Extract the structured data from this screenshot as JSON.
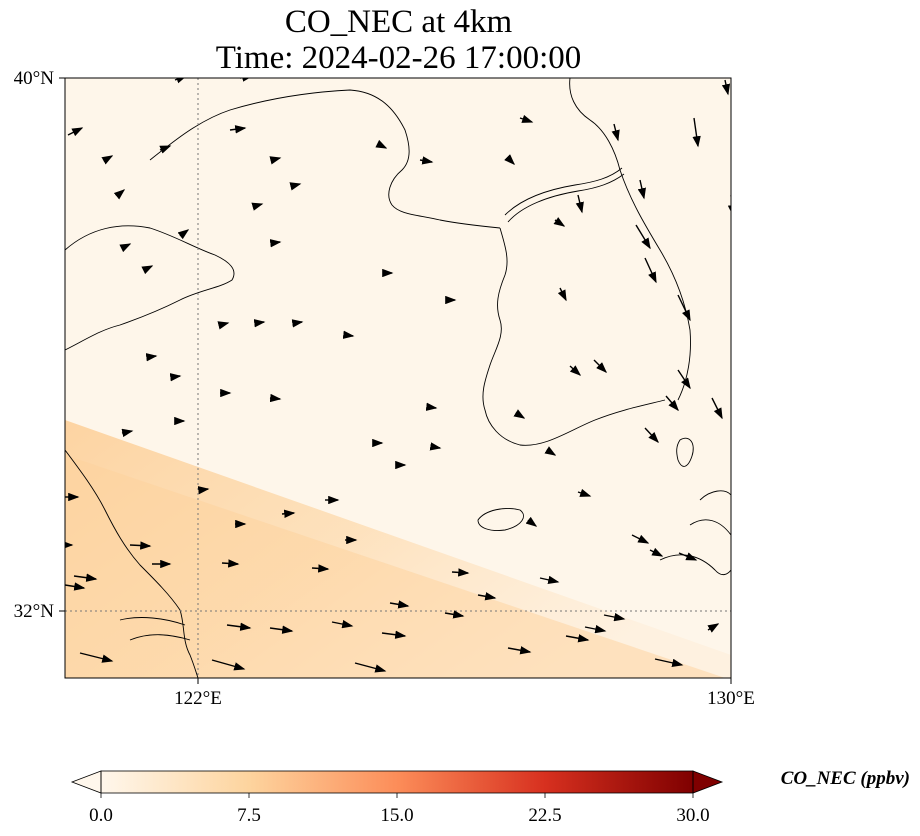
{
  "figure": {
    "title_line1": "CO_NEC at 4km",
    "title_line2": "Time: 2024-02-26 17:00:00"
  },
  "map": {
    "y_tick_labels": [
      "40°N",
      "32°N"
    ],
    "x_tick_labels": [
      "122°E",
      "130°E"
    ],
    "gridlines": "dotted gray at 122°E and 32°N"
  },
  "colorbar": {
    "label": "CO_NEC (ppbv)",
    "tick_labels": [
      "0.0",
      "7.5",
      "15.0",
      "22.5",
      "30.0"
    ],
    "colormap": [
      "#fff7ec",
      "#fdd49e",
      "#fc8d59",
      "#d7301f",
      "#7f0000"
    ],
    "extend": "both"
  },
  "chart_data": {
    "type": "heatmap",
    "title": "CO_NEC at 4km\nTime: 2024-02-26 17:00:00",
    "variable": "CO_NEC",
    "units": "ppbv",
    "xlim": [
      120,
      130
    ],
    "ylim": [
      31,
      40
    ],
    "value_range": [
      0,
      30
    ],
    "field_summary": "near 0–2 ppbv over northern and eastern domain; rising to about 7–9 ppbv in a band along the southwest (Yangtze delta / East China Sea)",
    "wind_vectors": "overlaid black quiver arrows, mostly westerly to northwesterly"
  }
}
